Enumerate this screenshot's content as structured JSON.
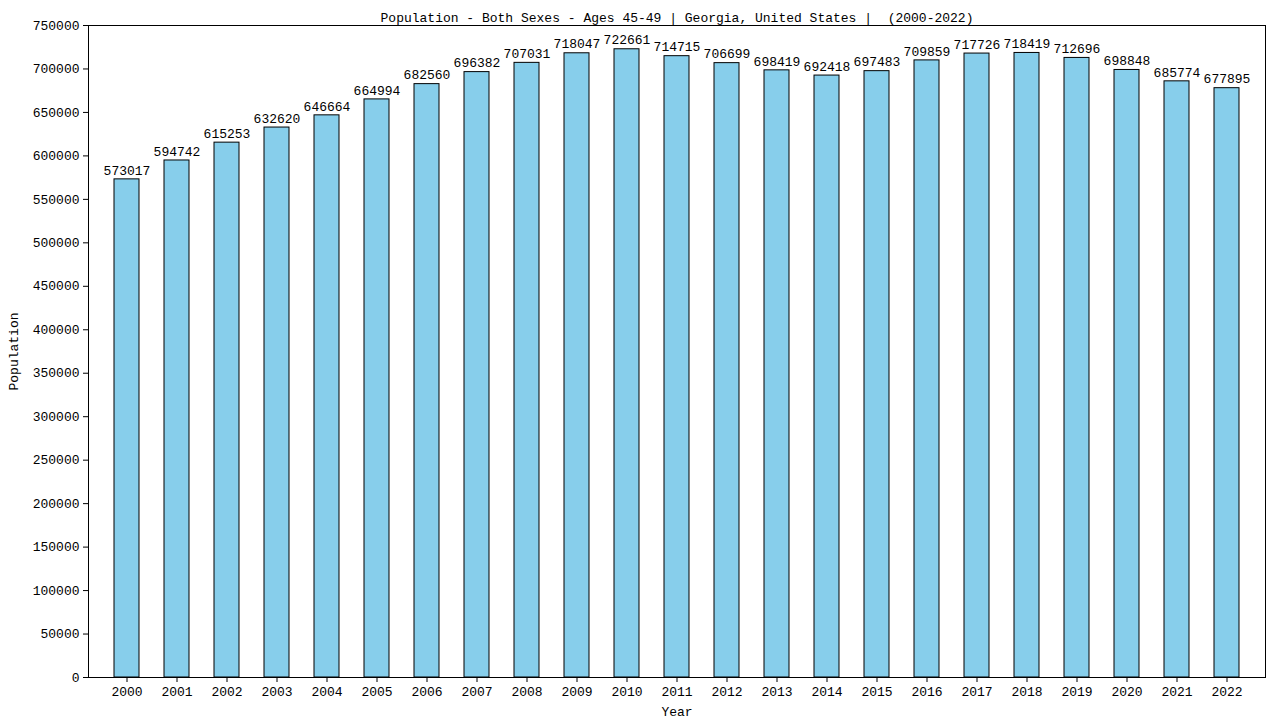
{
  "chart_data": {
    "type": "bar",
    "title": "Population - Both Sexes - Ages 45-49 | Georgia, United States |  (2000-2022)",
    "x_label": "Year",
    "y_label": "Population",
    "categories": [
      "2000",
      "2001",
      "2002",
      "2003",
      "2004",
      "2005",
      "2006",
      "2007",
      "2008",
      "2009",
      "2010",
      "2011",
      "2012",
      "2013",
      "2014",
      "2015",
      "2016",
      "2017",
      "2018",
      "2019",
      "2020",
      "2021",
      "2022"
    ],
    "values": [
      573017,
      594742,
      615253,
      632620,
      646664,
      664994,
      682560,
      696382,
      707031,
      718047,
      722661,
      714715,
      706699,
      698419,
      692418,
      697483,
      709859,
      717726,
      718419,
      712696,
      698848,
      685774,
      677895
    ],
    "color": "#87CEEB",
    "ylim": [
      0,
      750000
    ],
    "yticks": [
      0,
      50000,
      100000,
      150000,
      200000,
      250000,
      300000,
      350000,
      400000,
      450000,
      500000,
      550000,
      600000,
      650000,
      700000,
      750000
    ],
    "grid": false,
    "data_labels": true
  }
}
